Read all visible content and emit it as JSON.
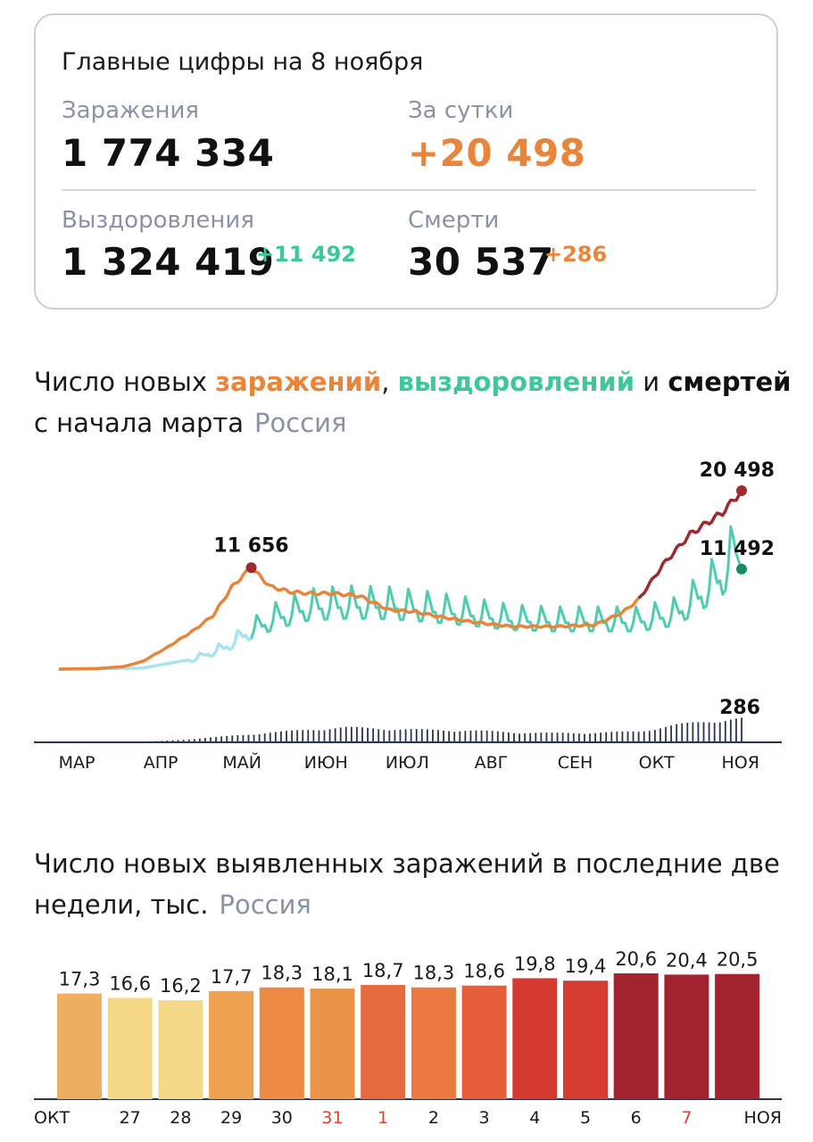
{
  "summary": {
    "title": "Главные цифры на 8 ноября",
    "infections": {
      "label": "Заражения",
      "value": "1 774 334"
    },
    "daily": {
      "label": "За сутки",
      "value": "+20 498"
    },
    "recoveries": {
      "label": "Выздоровления",
      "value": "1 324 419",
      "delta": "+11 492"
    },
    "deaths": {
      "label": "Смерти",
      "value": "30 537",
      "delta": "+286"
    }
  },
  "colors": {
    "infections": "#e8853a",
    "infections_peak": "#9e2a2f",
    "recoveries": "#3ec79a",
    "recoveries_light": "#a8e4f0",
    "deaths": "#2a3350",
    "muted": "#8a93a6",
    "red_tick": "#e0402e"
  },
  "chart1": {
    "title_part1": "Число новых ",
    "title_infections": "заражений",
    "title_sep": ", ",
    "title_recoveries": "выздоровлений",
    "title_and": " и ",
    "title_deaths": "смертей",
    "title_line2": "с начала марта",
    "region": "Россия"
  },
  "chart2": {
    "title_line1": "Число новых выявленных заражений в последние две",
    "title_line2": "недели, тыс.",
    "region": "Россия"
  },
  "chart_data": [
    {
      "type": "line",
      "x_month_labels": [
        "МАР",
        "АПР",
        "МАЙ",
        "ИЮН",
        "ИЮЛ",
        "АВГ",
        "СЕН",
        "ОКТ",
        "НОЯ"
      ],
      "series": [
        {
          "name": "заражений",
          "x": [
            "2020-03-01",
            "2020-03-15",
            "2020-03-25",
            "2020-04-01",
            "2020-04-10",
            "2020-04-20",
            "2020-04-27",
            "2020-05-04",
            "2020-05-11",
            "2020-05-18",
            "2020-05-25",
            "2020-06-01",
            "2020-06-10",
            "2020-06-20",
            "2020-07-01",
            "2020-07-10",
            "2020-07-20",
            "2020-08-01",
            "2020-08-15",
            "2020-09-01",
            "2020-09-15",
            "2020-09-25",
            "2020-10-01",
            "2020-10-10",
            "2020-10-20",
            "2020-11-01",
            "2020-11-08"
          ],
          "values": [
            2,
            60,
            300,
            900,
            2500,
            4500,
            6200,
            9500,
            11656,
            9500,
            8900,
            8700,
            8700,
            8400,
            6800,
            6600,
            6000,
            5400,
            4900,
            4900,
            5100,
            6500,
            8000,
            12000,
            15500,
            18000,
            20498
          ]
        },
        {
          "name": "выздоровлений",
          "x": [
            "2020-03-01",
            "2020-04-01",
            "2020-04-20",
            "2020-05-01",
            "2020-05-11",
            "2020-05-20",
            "2020-06-01",
            "2020-06-15",
            "2020-07-01",
            "2020-07-15",
            "2020-08-01",
            "2020-08-15",
            "2020-09-01",
            "2020-09-15",
            "2020-10-01",
            "2020-10-15",
            "2020-10-25",
            "2020-11-01",
            "2020-11-06",
            "2020-11-07",
            "2020-11-08"
          ],
          "values": [
            0,
            120,
            1200,
            2500,
            4500,
            6000,
            7200,
            7500,
            7400,
            7000,
            6400,
            5800,
            5600,
            5600,
            5600,
            6500,
            9000,
            11000,
            14000,
            13000,
            11492
          ]
        },
        {
          "name": "смертей",
          "x": [
            "2020-03-01",
            "2020-04-01",
            "2020-04-15",
            "2020-05-01",
            "2020-05-15",
            "2020-06-01",
            "2020-06-15",
            "2020-07-01",
            "2020-07-15",
            "2020-08-01",
            "2020-08-15",
            "2020-09-01",
            "2020-09-15",
            "2020-10-01",
            "2020-10-15",
            "2020-11-01",
            "2020-11-08"
          ],
          "values": [
            0,
            5,
            30,
            70,
            110,
            150,
            180,
            160,
            150,
            140,
            120,
            110,
            115,
            130,
            210,
            270,
            286
          ]
        }
      ],
      "annotations": [
        "11 656",
        "20 498",
        "11 492",
        "286"
      ]
    },
    {
      "type": "bar",
      "categories": [
        "ОКТ",
        "27",
        "28",
        "29",
        "30",
        "31",
        "1",
        "2",
        "3",
        "4",
        "5",
        "6",
        "7",
        "НОЯ"
      ],
      "values": [
        17.3,
        16.6,
        16.2,
        17.7,
        18.3,
        18.1,
        18.7,
        18.3,
        18.6,
        19.8,
        19.4,
        20.6,
        20.4,
        20.5
      ],
      "value_labels": [
        "17,3",
        "16,6",
        "16,2",
        "17,7",
        "18,3",
        "18,1",
        "18,7",
        "18,3",
        "18,6",
        "19,8",
        "19,4",
        "20,6",
        "20,4",
        "20,5"
      ],
      "bar_colors": [
        "#eeb060",
        "#f6d988",
        "#f6d988",
        "#eea250",
        "#eb8945",
        "#eb9448",
        "#e56a3d",
        "#ea7a40",
        "#e65e3a",
        "#d43a30",
        "#d23c31",
        "#a32331",
        "#a32331",
        "#a32331"
      ],
      "red_category_labels": [
        "31",
        "1",
        "7"
      ]
    }
  ]
}
